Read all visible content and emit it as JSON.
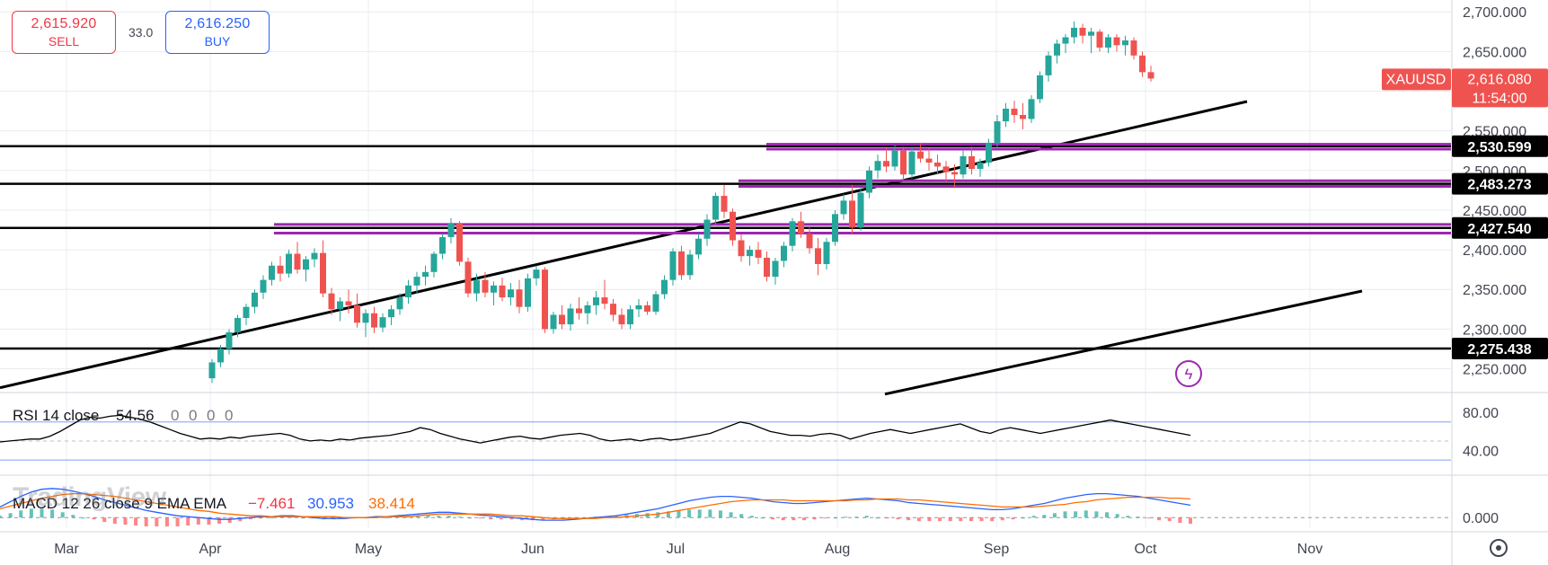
{
  "quote": {
    "sell_price": "2,615.920",
    "sell_label": "SELL",
    "spread": "33.0",
    "buy_price": "2,616.250",
    "buy_label": "BUY"
  },
  "watermark": "TradingView",
  "colors": {
    "up": "#26a69a",
    "down": "#ef5350",
    "trendline": "#000000",
    "zone": "#9c27b0",
    "rsi": "#000000",
    "macd_line": "#2962ff",
    "signal_line": "#ff6d00",
    "grid": "#e9ecf1"
  },
  "chart_data": [
    {
      "type": "candlestick",
      "symbol": "XAUUSD",
      "last_price": "2,616.080",
      "countdown": "11:54:00",
      "x_tick_labels": [
        "Mar",
        "Apr",
        "May",
        "Jun",
        "Jul",
        "Aug",
        "Sep",
        "Oct",
        "Nov"
      ],
      "y_tick_labels": [
        "2,700.000",
        "2,650.000",
        "2,600.000",
        "2,550.000",
        "2,500.000",
        "2,450.000",
        "2,400.000",
        "2,350.000",
        "2,300.000",
        "2,250.000"
      ],
      "ylim": [
        2220,
        2715
      ],
      "grid": true,
      "levels": [
        "2,530.599",
        "2,483.273",
        "2,427.540",
        "2,275.438"
      ],
      "ohlc": [
        [
          2238,
          2262,
          2232,
          2258
        ],
        [
          2258,
          2280,
          2252,
          2275
        ],
        [
          2275,
          2300,
          2268,
          2296
        ],
        [
          2296,
          2318,
          2290,
          2314
        ],
        [
          2314,
          2332,
          2305,
          2328
        ],
        [
          2328,
          2350,
          2320,
          2346
        ],
        [
          2346,
          2368,
          2338,
          2362
        ],
        [
          2362,
          2385,
          2355,
          2380
        ],
        [
          2380,
          2392,
          2360,
          2370
        ],
        [
          2370,
          2400,
          2365,
          2395
        ],
        [
          2395,
          2410,
          2370,
          2375
        ],
        [
          2375,
          2392,
          2360,
          2388
        ],
        [
          2388,
          2402,
          2378,
          2396
        ],
        [
          2396,
          2412,
          2340,
          2345
        ],
        [
          2345,
          2352,
          2318,
          2325
        ],
        [
          2325,
          2340,
          2310,
          2335
        ],
        [
          2335,
          2350,
          2320,
          2330
        ],
        [
          2330,
          2345,
          2302,
          2308
        ],
        [
          2308,
          2325,
          2290,
          2320
        ],
        [
          2320,
          2328,
          2295,
          2302
        ],
        [
          2302,
          2320,
          2296,
          2315
        ],
        [
          2315,
          2330,
          2305,
          2325
        ],
        [
          2325,
          2345,
          2318,
          2340
        ],
        [
          2340,
          2362,
          2332,
          2355
        ],
        [
          2355,
          2372,
          2345,
          2366
        ],
        [
          2366,
          2380,
          2355,
          2372
        ],
        [
          2372,
          2398,
          2365,
          2395
        ],
        [
          2395,
          2420,
          2388,
          2416
        ],
        [
          2416,
          2440,
          2408,
          2433
        ],
        [
          2433,
          2436,
          2380,
          2385
        ],
        [
          2385,
          2390,
          2340,
          2345
        ],
        [
          2345,
          2370,
          2335,
          2362
        ],
        [
          2362,
          2372,
          2340,
          2346
        ],
        [
          2346,
          2360,
          2330,
          2355
        ],
        [
          2355,
          2365,
          2335,
          2340
        ],
        [
          2340,
          2358,
          2330,
          2350
        ],
        [
          2350,
          2362,
          2320,
          2328
        ],
        [
          2328,
          2370,
          2322,
          2364
        ],
        [
          2364,
          2380,
          2355,
          2375
        ],
        [
          2375,
          2378,
          2295,
          2300
        ],
        [
          2300,
          2322,
          2294,
          2318
        ],
        [
          2318,
          2330,
          2300,
          2306
        ],
        [
          2306,
          2332,
          2298,
          2326
        ],
        [
          2326,
          2340,
          2312,
          2320
        ],
        [
          2320,
          2335,
          2306,
          2330
        ],
        [
          2330,
          2348,
          2318,
          2340
        ],
        [
          2340,
          2362,
          2325,
          2332
        ],
        [
          2332,
          2338,
          2310,
          2318
        ],
        [
          2318,
          2326,
          2300,
          2306
        ],
        [
          2306,
          2330,
          2300,
          2325
        ],
        [
          2325,
          2338,
          2315,
          2330
        ],
        [
          2330,
          2335,
          2318,
          2322
        ],
        [
          2322,
          2348,
          2318,
          2344
        ],
        [
          2344,
          2368,
          2338,
          2362
        ],
        [
          2362,
          2402,
          2355,
          2398
        ],
        [
          2398,
          2405,
          2362,
          2368
        ],
        [
          2368,
          2400,
          2362,
          2394
        ],
        [
          2394,
          2420,
          2388,
          2414
        ],
        [
          2414,
          2445,
          2405,
          2438
        ],
        [
          2438,
          2472,
          2430,
          2468
        ],
        [
          2468,
          2482,
          2440,
          2448
        ],
        [
          2448,
          2452,
          2405,
          2412
        ],
        [
          2412,
          2420,
          2385,
          2392
        ],
        [
          2392,
          2405,
          2380,
          2400
        ],
        [
          2400,
          2410,
          2382,
          2390
        ],
        [
          2390,
          2398,
          2360,
          2366
        ],
        [
          2366,
          2390,
          2356,
          2386
        ],
        [
          2386,
          2410,
          2378,
          2405
        ],
        [
          2405,
          2440,
          2398,
          2436
        ],
        [
          2436,
          2448,
          2415,
          2420
        ],
        [
          2420,
          2428,
          2395,
          2402
        ],
        [
          2402,
          2415,
          2368,
          2382
        ],
        [
          2382,
          2415,
          2375,
          2410
        ],
        [
          2410,
          2450,
          2405,
          2445
        ],
        [
          2445,
          2470,
          2438,
          2462
        ],
        [
          2462,
          2482,
          2420,
          2428
        ],
        [
          2428,
          2478,
          2424,
          2472
        ],
        [
          2472,
          2505,
          2465,
          2500
        ],
        [
          2500,
          2520,
          2490,
          2512
        ],
        [
          2512,
          2528,
          2498,
          2505
        ],
        [
          2505,
          2532,
          2500,
          2525
        ],
        [
          2525,
          2530,
          2488,
          2495
        ],
        [
          2495,
          2530,
          2490,
          2524
        ],
        [
          2524,
          2535,
          2510,
          2515
        ],
        [
          2515,
          2528,
          2500,
          2510
        ],
        [
          2510,
          2520,
          2495,
          2505
        ],
        [
          2505,
          2512,
          2485,
          2498
        ],
        [
          2498,
          2508,
          2478,
          2495
        ],
        [
          2495,
          2525,
          2490,
          2518
        ],
        [
          2518,
          2530,
          2495,
          2502
        ],
        [
          2502,
          2515,
          2492,
          2510
        ],
        [
          2510,
          2540,
          2505,
          2535
        ],
        [
          2535,
          2570,
          2528,
          2562
        ],
        [
          2562,
          2585,
          2555,
          2578
        ],
        [
          2578,
          2588,
          2560,
          2570
        ],
        [
          2570,
          2585,
          2552,
          2565
        ],
        [
          2565,
          2595,
          2560,
          2590
        ],
        [
          2590,
          2625,
          2585,
          2620
        ],
        [
          2620,
          2650,
          2612,
          2645
        ],
        [
          2645,
          2665,
          2635,
          2660
        ],
        [
          2660,
          2672,
          2648,
          2668
        ],
        [
          2668,
          2688,
          2660,
          2680
        ],
        [
          2680,
          2685,
          2660,
          2670
        ],
        [
          2670,
          2680,
          2648,
          2675
        ],
        [
          2675,
          2678,
          2650,
          2655
        ],
        [
          2655,
          2672,
          2648,
          2668
        ],
        [
          2668,
          2672,
          2650,
          2658
        ],
        [
          2658,
          2670,
          2645,
          2664
        ],
        [
          2664,
          2668,
          2640,
          2645
        ],
        [
          2645,
          2650,
          2618,
          2624
        ],
        [
          2624,
          2632,
          2612,
          2616
        ]
      ]
    },
    {
      "type": "line",
      "title": "RSI 14 close",
      "value": "54.56",
      "extra_values": [
        "0",
        "0",
        "0",
        "0"
      ],
      "y_tick_labels": [
        "80.00",
        "40.00"
      ],
      "ylim": [
        15,
        100
      ],
      "upper_band": 70,
      "mid_band": 50,
      "lower_band": 30,
      "values": [
        49,
        50,
        51,
        52,
        52,
        55,
        60,
        66,
        72,
        75,
        74,
        76,
        77,
        75,
        73,
        70,
        66,
        62,
        58,
        55,
        52,
        53,
        52,
        54,
        53,
        55,
        56,
        57,
        58,
        56,
        52,
        50,
        51,
        50,
        52,
        51,
        53,
        54,
        55,
        56,
        58,
        60,
        64,
        62,
        58,
        55,
        52,
        50,
        48,
        50,
        52,
        54,
        55,
        53,
        52,
        54,
        56,
        57,
        58,
        56,
        52,
        50,
        51,
        52,
        50,
        52,
        53,
        51,
        52,
        54,
        56,
        58,
        62,
        66,
        70,
        68,
        64,
        60,
        58,
        56,
        56,
        55,
        57,
        58,
        56,
        52,
        55,
        58,
        60,
        62,
        60,
        58,
        60,
        62,
        64,
        66,
        68,
        64,
        60,
        58,
        62,
        64,
        62,
        60,
        58,
        60,
        62,
        64,
        66,
        68,
        70,
        72,
        70,
        68,
        66,
        64,
        62,
        60,
        58,
        56
      ]
    },
    {
      "type": "line",
      "title": "MACD 12 26 close 9 EMA EMA",
      "values_text": [
        "−7.461",
        "30.953",
        "38.414"
      ],
      "y_tick_labels": [
        "0.000"
      ],
      "ylim": [
        -12,
        48
      ],
      "series": [
        {
          "name": "MACD",
          "values": [
            12,
            18,
            24,
            29,
            32,
            33,
            32,
            30,
            27,
            24,
            20,
            17,
            14,
            11,
            8,
            6,
            4,
            2,
            1,
            0,
            -1,
            -2,
            -2,
            -1,
            0,
            1,
            1,
            2,
            2,
            1,
            0,
            -1,
            -1,
            -1,
            0,
            0,
            1,
            1,
            2,
            3,
            4,
            5,
            6,
            6,
            5,
            4,
            3,
            2,
            1,
            0,
            -1,
            -2,
            -3,
            -3,
            -3,
            -2,
            -1,
            0,
            1,
            2,
            4,
            6,
            8,
            10,
            13,
            16,
            19,
            21,
            23,
            24,
            24,
            23,
            22,
            20,
            18,
            17,
            16,
            16,
            17,
            18,
            19,
            20,
            21,
            22,
            21,
            20,
            19,
            17,
            16,
            15,
            14,
            13,
            12,
            11,
            10,
            9,
            9,
            10,
            12,
            14,
            16,
            19,
            22,
            24,
            26,
            27,
            27,
            26,
            25,
            24,
            22,
            20,
            18,
            16,
            14
          ]
        },
        {
          "name": "Signal",
          "values": [
            10,
            13,
            16,
            19,
            22,
            24,
            26,
            27,
            27,
            26,
            25,
            24,
            22,
            20,
            18,
            16,
            14,
            12,
            10,
            8,
            7,
            5,
            4,
            3,
            2,
            2,
            1,
            1,
            1,
            1,
            1,
            1,
            1,
            0,
            0,
            0,
            0,
            1,
            1,
            1,
            2,
            3,
            4,
            4,
            4,
            4,
            4,
            4,
            3,
            2,
            2,
            1,
            0,
            -1,
            -1,
            -1,
            -1,
            -1,
            0,
            0,
            1,
            2,
            3,
            4,
            6,
            8,
            10,
            12,
            14,
            16,
            18,
            19,
            20,
            20,
            20,
            20,
            19,
            19,
            19,
            19,
            19,
            19,
            20,
            20,
            21,
            21,
            21,
            20,
            20,
            19,
            18,
            17,
            16,
            15,
            14,
            13,
            12,
            12,
            12,
            12,
            13,
            14,
            15,
            17,
            18,
            20,
            21,
            22,
            23,
            23,
            23,
            23,
            22,
            22,
            21
          ]
        }
      ]
    }
  ]
}
